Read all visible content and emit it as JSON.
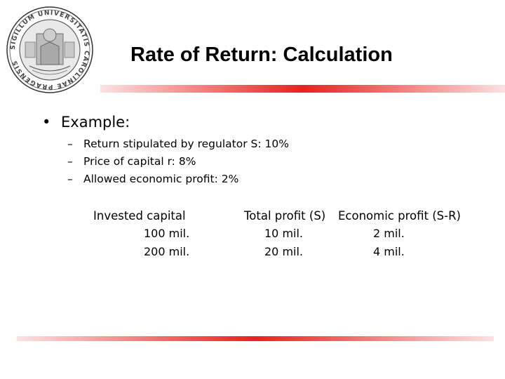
{
  "slide": {
    "title": "Rate of Return: Calculation",
    "seal_text": "SIGILLUM UNIVERSITATIS CAROLINAE PRAGENSIS",
    "accent_color": "#ea2020"
  },
  "example": {
    "bullet_glyph": "•",
    "label": "Example:",
    "dash_glyph": "–",
    "items": [
      "Return stipulated by regulator S: 10%",
      "Price of capital r: 8%",
      "Allowed economic profit: 2%"
    ]
  },
  "table": {
    "headers": [
      "Invested capital",
      "Total profit (S)",
      "Economic profit (S-R)"
    ],
    "rows": [
      [
        "100 mil.",
        "10 mil.",
        "2 mil."
      ],
      [
        "200 mil.",
        "20 mil.",
        "4 mil."
      ]
    ]
  }
}
